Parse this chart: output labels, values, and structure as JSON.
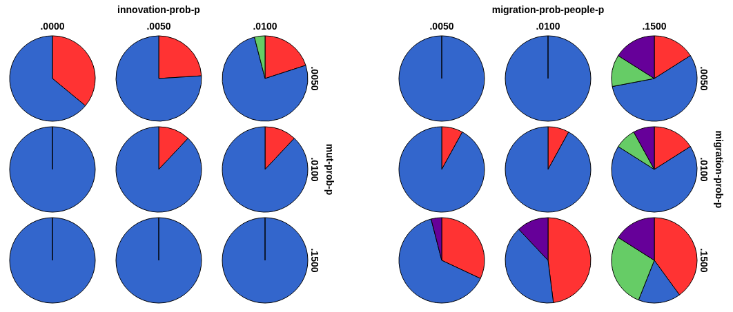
{
  "chart_data": [
    {
      "type": "pie",
      "title": ".0000",
      "annotations": [
        "innovation-prob-p",
        "mut-prob-p"
      ],
      "categories": [
        null,
        null
      ],
      "values": [
        36,
        64
      ],
      "colors": [
        "#ff3333",
        "#3366cc"
      ]
    },
    {
      "type": "pie",
      "title": ".0050",
      "categories": [
        null,
        null
      ],
      "values": [
        24,
        76
      ],
      "colors": [
        "#ff3333",
        "#3366cc"
      ]
    },
    {
      "type": "pie",
      "title": ".0100",
      "y2label": ".0050",
      "categories": [
        null,
        null,
        null
      ],
      "values": [
        20,
        76,
        4
      ],
      "colors": [
        "#ff3333",
        "#3366cc",
        "#66cc66"
      ]
    },
    {
      "type": "pie",
      "categories": [
        null
      ],
      "values": [
        100
      ],
      "colors": [
        "#3366cc"
      ]
    },
    {
      "type": "pie",
      "categories": [
        null,
        null
      ],
      "values": [
        12,
        88
      ],
      "colors": [
        "#ff3333",
        "#3366cc"
      ]
    },
    {
      "type": "pie",
      "y2label": ".0100",
      "categories": [
        null,
        null
      ],
      "values": [
        12,
        88
      ],
      "colors": [
        "#ff3333",
        "#3366cc"
      ]
    },
    {
      "type": "pie",
      "categories": [
        null
      ],
      "values": [
        100
      ],
      "colors": [
        "#3366cc"
      ]
    },
    {
      "type": "pie",
      "categories": [
        null
      ],
      "values": [
        100
      ],
      "colors": [
        "#3366cc"
      ]
    },
    {
      "type": "pie",
      "y2label": ".1500",
      "categories": [
        null
      ],
      "values": [
        100
      ],
      "colors": [
        "#3366cc"
      ]
    },
    {
      "type": "pie",
      "title": ".0050",
      "annotations": [
        "migration-prob-people-p",
        "migration-prob-p"
      ],
      "categories": [
        null
      ],
      "values": [
        100
      ],
      "colors": [
        "#3366cc"
      ]
    },
    {
      "type": "pie",
      "title": ".0100",
      "categories": [
        null
      ],
      "values": [
        100
      ],
      "colors": [
        "#3366cc"
      ]
    },
    {
      "type": "pie",
      "title": ".1500",
      "y2label": ".0050",
      "categories": [
        null,
        null,
        null,
        null
      ],
      "values": [
        16,
        56,
        12,
        16
      ],
      "colors": [
        "#ff3333",
        "#3366cc",
        "#66cc66",
        "#660099"
      ]
    },
    {
      "type": "pie",
      "categories": [
        null,
        null
      ],
      "values": [
        8,
        92
      ],
      "colors": [
        "#ff3333",
        "#3366cc"
      ]
    },
    {
      "type": "pie",
      "categories": [
        null,
        null
      ],
      "values": [
        8,
        92
      ],
      "colors": [
        "#ff3333",
        "#3366cc"
      ]
    },
    {
      "type": "pie",
      "y2label": ".0100",
      "categories": [
        null,
        null,
        null,
        null
      ],
      "values": [
        16,
        68,
        8,
        8
      ],
      "colors": [
        "#ff3333",
        "#3366cc",
        "#66cc66",
        "#660099"
      ]
    },
    {
      "type": "pie",
      "categories": [
        null,
        null,
        null
      ],
      "values": [
        32,
        64,
        4
      ],
      "colors": [
        "#ff3333",
        "#3366cc",
        "#660099"
      ]
    },
    {
      "type": "pie",
      "categories": [
        null,
        null,
        null
      ],
      "values": [
        48,
        40,
        12
      ],
      "colors": [
        "#ff3333",
        "#3366cc",
        "#660099"
      ]
    },
    {
      "type": "pie",
      "y2label": ".1500",
      "categories": [
        null,
        null,
        null,
        null
      ],
      "values": [
        40,
        16,
        28,
        16
      ],
      "colors": [
        "#ff3333",
        "#3366cc",
        "#66cc66",
        "#660099"
      ]
    }
  ]
}
